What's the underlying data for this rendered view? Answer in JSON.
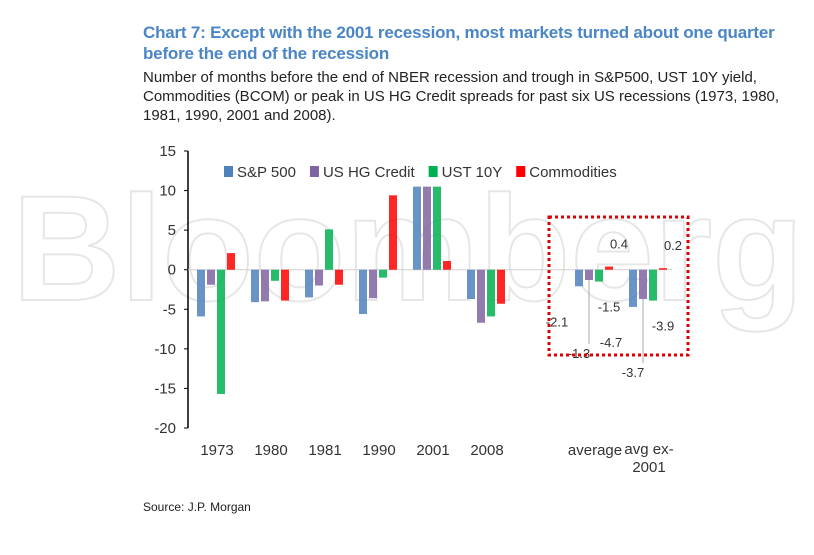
{
  "title": "Chart 7: Except with the 2001 recession, most markets turned about one quarter before the end of the recession",
  "subtitle": "Number of months before the end of NBER recession and trough in S&P500, UST 10Y yield, Commodities (BCOM) or peak in US HG Credit spreads for past six US recessions (1973, 1980, 1981, 1990, 2001 and 2008).",
  "source": "Source: J.P. Morgan",
  "watermark": "Bloomberg",
  "chart_data": {
    "type": "bar",
    "categories": [
      "1973",
      "1980",
      "1981",
      "1990",
      "2001",
      "2008",
      "",
      "average",
      "avg ex-2001"
    ],
    "series": [
      {
        "name": "S&P 500",
        "color": "#4f81bd",
        "values": [
          -5.9,
          -4.1,
          -3.5,
          -5.6,
          10.5,
          -3.7,
          null,
          -2.1,
          -4.7
        ]
      },
      {
        "name": "US HG Credit",
        "color": "#8064a2",
        "values": [
          -1.9,
          -4.0,
          -2.0,
          -3.6,
          10.5,
          -6.7,
          null,
          -1.3,
          -3.7
        ]
      },
      {
        "name": "UST 10Y",
        "color": "#00b050",
        "values": [
          -15.7,
          -1.4,
          5.1,
          -1.0,
          10.5,
          -5.9,
          null,
          -1.5,
          -3.9
        ]
      },
      {
        "name": "Commodities",
        "color": "#ff0000",
        "values": [
          2.1,
          -3.9,
          -1.9,
          9.4,
          1.1,
          -4.3,
          null,
          0.4,
          0.2
        ]
      }
    ],
    "data_labels": [
      {
        "category": "average",
        "labels": [
          "-2.1",
          "-1.3",
          "-1.5",
          "0.4"
        ]
      },
      {
        "category": "avg ex-2001",
        "labels": [
          "-4.7",
          "-3.7",
          "-3.9",
          "0.2"
        ]
      }
    ],
    "yticks": [
      "15",
      "10",
      "5",
      "0",
      "-5",
      "-10",
      "-15",
      "-20"
    ],
    "ylim": [
      -20,
      15
    ],
    "legend": "top",
    "grid": false,
    "highlight_box_color": "#e00000"
  }
}
